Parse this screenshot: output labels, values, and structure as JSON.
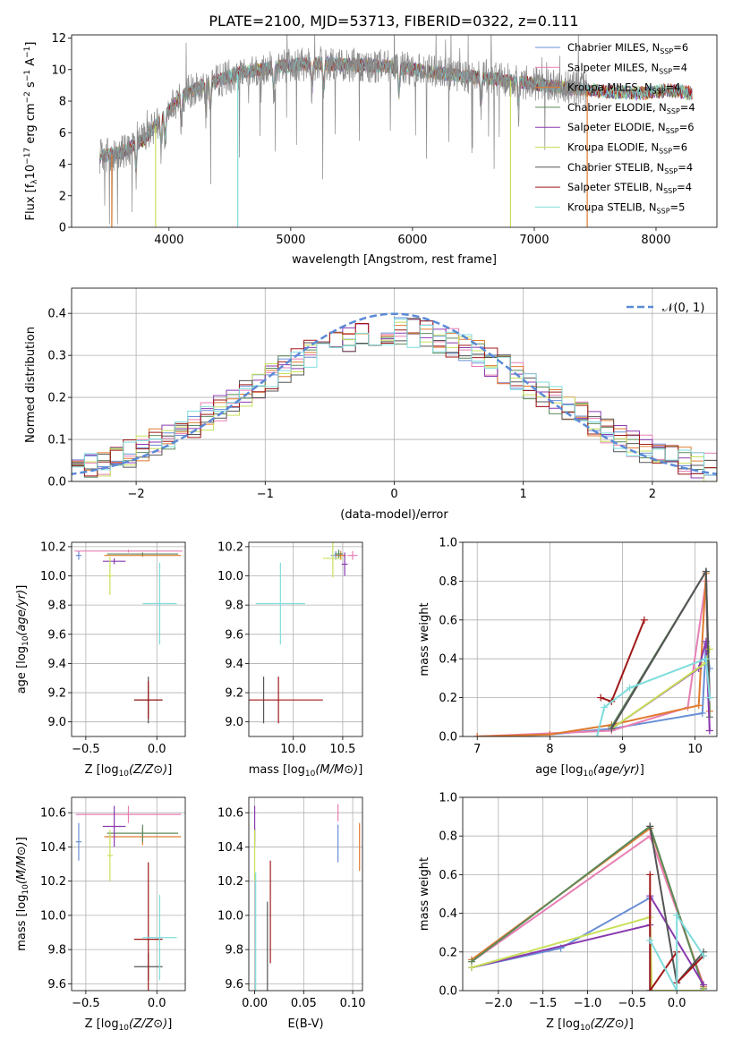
{
  "figure_title": "PLATE=2100, MJD=53713, FIBERID=0322, z=0.111",
  "colors": {
    "chabrier_miles": "#6a8fd6",
    "salpeter_miles": "#e87fb4",
    "kroupa_miles": "#e07a2e",
    "chabrier_elodie": "#5b8a5b",
    "salpeter_elodie": "#8a3ab0",
    "kroupa_elodie": "#c8e05a",
    "chabrier_stelib": "#555555",
    "salpeter_stelib": "#a01818",
    "kroupa_stelib": "#7fdcdc",
    "gaussian": "#5b8ad6"
  },
  "chart_data": [
    {
      "id": "spectrum",
      "type": "line",
      "title": "PLATE=2100, MJD=53713, FIBERID=0322, z=0.111",
      "xlabel": "wavelength [Angstrom, rest frame]",
      "ylabel": "Flux [f_λ 10^-17 erg cm^-2 s^-1 A^-1]",
      "xlim": [
        3200,
        8500
      ],
      "ylim": [
        0,
        12.2
      ],
      "xticks": [
        4000,
        5000,
        6000,
        7000,
        8000
      ],
      "yticks": [
        0,
        2,
        4,
        6,
        8,
        10,
        12
      ],
      "grid": false,
      "legend_position": "right",
      "legend": [
        {
          "label": "Chabrier MILES, N",
          "sub": "SSP",
          "suffix": "=6",
          "color_key": "chabrier_miles"
        },
        {
          "label": "Salpeter MILES, N",
          "sub": "SSP",
          "suffix": "=4",
          "color_key": "salpeter_miles"
        },
        {
          "label": "Kroupa MILES, N",
          "sub": "SSP",
          "suffix": "=4",
          "color_key": "kroupa_miles"
        },
        {
          "label": "Chabrier ELODIE, N",
          "sub": "SSP",
          "suffix": "=4",
          "color_key": "chabrier_elodie"
        },
        {
          "label": "Salpeter ELODIE, N",
          "sub": "SSP",
          "suffix": "=6",
          "color_key": "salpeter_elodie"
        },
        {
          "label": "Kroupa ELODIE, N",
          "sub": "SSP",
          "suffix": "=6",
          "color_key": "kroupa_elodie"
        },
        {
          "label": "Chabrier STELIB, N",
          "sub": "SSP",
          "suffix": "=4",
          "color_key": "chabrier_stelib"
        },
        {
          "label": "Salpeter STELIB, N",
          "sub": "SSP",
          "suffix": "=4",
          "color_key": "salpeter_stelib"
        },
        {
          "label": "Kroupa STELIB, N",
          "sub": "SSP",
          "suffix": "=5",
          "color_key": "kroupa_stelib"
        }
      ],
      "continuum_knots": [
        [
          3430,
          4.5
        ],
        [
          3600,
          4.7
        ],
        [
          3800,
          5.6
        ],
        [
          3950,
          7.0
        ],
        [
          4100,
          8.3
        ],
        [
          4300,
          9.1
        ],
        [
          4600,
          9.8
        ],
        [
          4900,
          10.2
        ],
        [
          5200,
          10.4
        ],
        [
          5500,
          10.3
        ],
        [
          5800,
          10.2
        ],
        [
          6100,
          9.9
        ],
        [
          6400,
          9.6
        ],
        [
          6800,
          9.3
        ],
        [
          7200,
          8.9
        ],
        [
          7600,
          8.6
        ],
        [
          7900,
          8.5
        ],
        [
          8100,
          8.7
        ],
        [
          8300,
          8.5
        ]
      ],
      "data_range": [
        3430,
        7440
      ],
      "model_range": [
        3430,
        8300
      ],
      "dropouts": [
        [
          3530,
          "kroupa_miles"
        ],
        [
          3890,
          "kroupa_elodie"
        ],
        [
          4565,
          "kroupa_stelib"
        ],
        [
          6805,
          "kroupa_elodie"
        ],
        [
          7435,
          "kroupa_miles"
        ]
      ]
    },
    {
      "id": "residual_hist",
      "type": "histogram",
      "xlabel": "(data-model)/error",
      "ylabel": "Normed distribution",
      "xlim": [
        -2.5,
        2.5
      ],
      "ylim": [
        0,
        0.46
      ],
      "xticks": [
        -2,
        -1,
        0,
        1,
        2
      ],
      "xticklabels": [
        "−2",
        "−1",
        "0",
        "1",
        "2"
      ],
      "yticks": [
        0,
        0.1,
        0.2,
        0.3,
        0.4
      ],
      "yticklabels": [
        "0.0",
        "0.1",
        "0.2",
        "0.3",
        "0.4"
      ],
      "grid": true,
      "legend_position": "top-right",
      "gaussian_label": "𝒩(0, 1)",
      "bin_width": 0.1
    },
    {
      "id": "age_vs_Z",
      "type": "errorbar",
      "xlabel": "Z [log10(Z/Z⊙)]",
      "ylabel": "age [log10(age/yr)]",
      "xlim": [
        -0.6,
        0.2
      ],
      "ylim": [
        8.9,
        10.23
      ],
      "xticks": [
        -0.5,
        0.0
      ],
      "xticklabels": [
        "−0.5",
        "0.0"
      ],
      "yticks": [
        9.0,
        9.2,
        9.4,
        9.6,
        9.8,
        10.0,
        10.2
      ],
      "yticklabels": [
        "9.0",
        "9.2",
        "9.4",
        "9.6",
        "9.8",
        "10.0",
        "10.2"
      ],
      "grid": true,
      "points": [
        {
          "c": "chabrier_miles",
          "x": -0.55,
          "y": 10.14,
          "xe": 0.02,
          "ye": 0.03
        },
        {
          "c": "salpeter_miles",
          "x": -0.2,
          "y": 10.17,
          "xe": 0.38,
          "ye": 0.01
        },
        {
          "c": "kroupa_miles",
          "x": -0.1,
          "y": 10.14,
          "xe": 0.27,
          "ye": 0.01
        },
        {
          "c": "chabrier_elodie",
          "x": -0.1,
          "y": 10.15,
          "xe": 0.25,
          "ye": 0.01
        },
        {
          "c": "salpeter_elodie",
          "x": -0.3,
          "y": 10.1,
          "xe": 0.08,
          "ye": 0.02
        },
        {
          "c": "kroupa_elodie",
          "x": -0.33,
          "y": 10.0,
          "xe": 0.02,
          "ye": 0.13
        },
        {
          "c": "chabrier_stelib",
          "x": -0.06,
          "y": 9.15,
          "xe": 0.1,
          "ye": 0.16
        },
        {
          "c": "salpeter_stelib",
          "x": -0.06,
          "y": 9.15,
          "xe": 0.1,
          "ye": 0.13
        },
        {
          "c": "kroupa_stelib",
          "x": 0.02,
          "y": 9.81,
          "xe": 0.12,
          "ye": 0.28
        }
      ]
    },
    {
      "id": "age_vs_mass",
      "type": "errorbar",
      "xlabel": "mass [log10(M/M⊙)]",
      "ylabel": "",
      "xlim": [
        9.55,
        10.7
      ],
      "ylim": [
        8.9,
        10.23
      ],
      "xticks": [
        10.0,
        10.5
      ],
      "xticklabels": [
        "10.0",
        "10.5"
      ],
      "yticks": [
        9.0,
        9.2,
        9.4,
        9.6,
        9.8,
        10.0,
        10.2
      ],
      "yticklabels": [
        "9.0",
        "9.2",
        "9.4",
        "9.6",
        "9.8",
        "10.0",
        "10.2"
      ],
      "grid": true,
      "points": [
        {
          "c": "chabrier_miles",
          "x": 10.43,
          "y": 10.14,
          "xe": 0.05,
          "ye": 0.03
        },
        {
          "c": "salpeter_miles",
          "x": 10.6,
          "y": 10.14,
          "xe": 0.05,
          "ye": 0.03
        },
        {
          "c": "kroupa_miles",
          "x": 10.48,
          "y": 10.14,
          "xe": 0.05,
          "ye": 0.03
        },
        {
          "c": "chabrier_elodie",
          "x": 10.46,
          "y": 10.15,
          "xe": 0.04,
          "ye": 0.03
        },
        {
          "c": "salpeter_elodie",
          "x": 10.52,
          "y": 10.08,
          "xe": 0.03,
          "ye": 0.08
        },
        {
          "c": "kroupa_elodie",
          "x": 10.4,
          "y": 10.12,
          "xe": 0.1,
          "ye": 0.13
        },
        {
          "c": "chabrier_stelib",
          "x": 9.7,
          "y": 9.15,
          "xe": 0.0,
          "ye": 0.16
        },
        {
          "c": "salpeter_stelib",
          "x": 9.85,
          "y": 9.15,
          "xe": 0.45,
          "ye": 0.16
        },
        {
          "c": "kroupa_stelib",
          "x": 9.87,
          "y": 9.81,
          "xe": 0.25,
          "ye": 0.28
        }
      ]
    },
    {
      "id": "mass_weight_vs_age",
      "type": "line",
      "xlabel": "age [log10(age/yr)]",
      "ylabel": "mass weight",
      "xlim": [
        6.8,
        10.3
      ],
      "ylim": [
        0,
        1.0
      ],
      "xticks": [
        7,
        8,
        9,
        10
      ],
      "xticklabels": [
        "7",
        "8",
        "9",
        "10"
      ],
      "yticks": [
        0,
        0.2,
        0.4,
        0.6,
        0.8,
        1.0
      ],
      "yticklabels": [
        "0.0",
        "0.2",
        "0.4",
        "0.6",
        "0.8",
        "1.0"
      ],
      "grid": true,
      "series": [
        {
          "c": "chabrier_miles",
          "x": [
            7.0,
            8.0,
            8.85,
            10.1,
            10.15,
            10.2
          ],
          "y": [
            0.0,
            0.01,
            0.04,
            0.12,
            0.48,
            0.35
          ]
        },
        {
          "c": "salpeter_miles",
          "x": [
            7.0,
            8.85,
            9.9,
            10.15,
            10.2
          ],
          "y": [
            0.0,
            0.03,
            0.15,
            0.8,
            0.03
          ]
        },
        {
          "c": "kroupa_miles",
          "x": [
            7.0,
            8.0,
            8.85,
            10.05,
            10.15,
            10.2
          ],
          "y": [
            0.0,
            0.01,
            0.06,
            0.16,
            0.84,
            0.13
          ]
        },
        {
          "c": "chabrier_elodie",
          "x": [
            8.85,
            10.15,
            10.2
          ],
          "y": [
            0.05,
            0.85,
            0.1
          ]
        },
        {
          "c": "salpeter_elodie",
          "x": [
            8.85,
            10.05,
            10.15,
            10.2
          ],
          "y": [
            0.04,
            0.35,
            0.49,
            0.03
          ]
        },
        {
          "c": "kroupa_elodie",
          "x": [
            8.85,
            10.15,
            10.2
          ],
          "y": [
            0.04,
            0.38,
            0.45
          ]
        },
        {
          "c": "chabrier_stelib",
          "x": [
            8.85,
            10.15,
            10.2
          ],
          "y": [
            0.04,
            0.85,
            0.2
          ]
        },
        {
          "c": "salpeter_stelib",
          "x": [
            8.7,
            8.85,
            9.3
          ],
          "y": [
            0.2,
            0.18,
            0.6
          ]
        },
        {
          "c": "kroupa_stelib",
          "x": [
            8.65,
            8.75,
            9.1,
            10.15,
            10.2
          ],
          "y": [
            0.0,
            0.15,
            0.25,
            0.4,
            0.2
          ]
        }
      ]
    },
    {
      "id": "mass_vs_Z",
      "type": "errorbar",
      "xlabel": "Z [log10(Z/Z⊙)]",
      "ylabel": "mass [log10(M/M⊙)]",
      "xlim": [
        -0.6,
        0.2
      ],
      "ylim": [
        9.56,
        10.69
      ],
      "xticks": [
        -0.5,
        0.0
      ],
      "xticklabels": [
        "−0.5",
        "0.0"
      ],
      "yticks": [
        9.6,
        9.8,
        10.0,
        10.2,
        10.4,
        10.6
      ],
      "yticklabels": [
        "9.6",
        "9.8",
        "10.0",
        "10.2",
        "10.4",
        "10.6"
      ],
      "grid": true,
      "points": [
        {
          "c": "chabrier_miles",
          "x": -0.55,
          "y": 10.43,
          "xe": 0.02,
          "ye": 0.11
        },
        {
          "c": "salpeter_miles",
          "x": -0.2,
          "y": 10.59,
          "xe": 0.37,
          "ye": 0.05
        },
        {
          "c": "kroupa_miles",
          "x": -0.1,
          "y": 10.46,
          "xe": 0.27,
          "ye": 0.05
        },
        {
          "c": "chabrier_elodie",
          "x": -0.1,
          "y": 10.48,
          "xe": 0.25,
          "ye": 0.05
        },
        {
          "c": "salpeter_elodie",
          "x": -0.3,
          "y": 10.52,
          "xe": 0.08,
          "ye": 0.12
        },
        {
          "c": "kroupa_elodie",
          "x": -0.33,
          "y": 10.35,
          "xe": 0.02,
          "ye": 0.15
        },
        {
          "c": "chabrier_stelib",
          "x": -0.06,
          "y": 9.7,
          "xe": 0.1,
          "ye": 0.08
        },
        {
          "c": "salpeter_stelib",
          "x": -0.06,
          "y": 9.86,
          "xe": 0.1,
          "ye": 0.45
        },
        {
          "c": "kroupa_stelib",
          "x": 0.02,
          "y": 9.87,
          "xe": 0.12,
          "ye": 0.25
        }
      ]
    },
    {
      "id": "mass_vs_ebv",
      "type": "errorbar",
      "xlabel": "E(B-V)",
      "ylabel": "",
      "xlim": [
        -0.006,
        0.11
      ],
      "ylim": [
        9.56,
        10.69
      ],
      "xticks": [
        0.0,
        0.05,
        0.1
      ],
      "xticklabels": [
        "0.00",
        "0.05",
        "0.10"
      ],
      "yticks": [
        9.6,
        9.8,
        10.0,
        10.2,
        10.4,
        10.6
      ],
      "yticklabels": [
        "9.6",
        "9.8",
        "10.0",
        "10.2",
        "10.4",
        "10.6"
      ],
      "grid": true,
      "points": [
        {
          "c": "chabrier_miles",
          "x": 0.085,
          "y": 10.42,
          "xe": 0.0,
          "ye": 0.11
        },
        {
          "c": "salpeter_miles",
          "x": 0.085,
          "y": 10.6,
          "xe": 0.0,
          "ye": 0.05
        },
        {
          "c": "kroupa_miles",
          "x": 0.107,
          "y": 10.4,
          "xe": 0.0,
          "ye": 0.14
        },
        {
          "c": "chabrier_elodie",
          "x": 0.0,
          "y": 10.47,
          "xe": 0.0,
          "ye": 0.04
        },
        {
          "c": "salpeter_elodie",
          "x": 0.0,
          "y": 10.52,
          "xe": 0.0,
          "ye": 0.12
        },
        {
          "c": "kroupa_elodie",
          "x": 0.0,
          "y": 10.35,
          "xe": 0.0,
          "ye": 0.15
        },
        {
          "c": "chabrier_stelib",
          "x": 0.013,
          "y": 9.82,
          "xe": 0.0,
          "ye": 0.26
        },
        {
          "c": "salpeter_stelib",
          "x": 0.016,
          "y": 10.02,
          "xe": 0.0,
          "ye": 0.3
        },
        {
          "c": "kroupa_stelib",
          "x": 0.001,
          "y": 9.9,
          "xe": 0.0,
          "ye": 0.35
        }
      ]
    },
    {
      "id": "mass_weight_vs_Z",
      "type": "line",
      "xlabel": "Z [log10(Z/Z⊙)]",
      "ylabel": "mass weight",
      "xlim": [
        -2.4,
        0.45
      ],
      "ylim": [
        0,
        1.0
      ],
      "xticks": [
        -2.0,
        -1.5,
        -1.0,
        -0.5,
        0.0
      ],
      "xticklabels": [
        "−2.0",
        "−1.5",
        "−1.0",
        "−0.5",
        "0.0"
      ],
      "yticks": [
        0,
        0.2,
        0.4,
        0.6,
        0.8,
        1.0
      ],
      "yticklabels": [
        "0.0",
        "0.2",
        "0.4",
        "0.6",
        "0.8",
        "1.0"
      ],
      "grid": true,
      "series": [
        {
          "c": "chabrier_miles",
          "x": [
            -2.3,
            -1.3,
            -0.3,
            -0.3,
            0.3
          ],
          "y": [
            0.12,
            0.22,
            0.48,
            0.0,
            0.0
          ]
        },
        {
          "c": "salpeter_miles",
          "x": [
            -2.3,
            -0.3,
            0.3
          ],
          "y": [
            0.15,
            0.8,
            0.03
          ]
        },
        {
          "c": "kroupa_miles",
          "x": [
            -2.3,
            -0.3,
            0.3
          ],
          "y": [
            0.16,
            0.84,
            0.02
          ]
        },
        {
          "c": "chabrier_elodie",
          "x": [
            -2.3,
            -0.3,
            0.3
          ],
          "y": [
            0.15,
            0.85,
            0.01
          ]
        },
        {
          "c": "salpeter_elodie",
          "x": [
            -2.3,
            -0.3,
            -0.3,
            0.3
          ],
          "y": [
            0.12,
            0.34,
            0.49,
            0.03
          ]
        },
        {
          "c": "kroupa_elodie",
          "x": [
            -2.3,
            -0.3,
            -0.28,
            0.3
          ],
          "y": [
            0.12,
            0.38,
            0.0,
            0.0
          ]
        },
        {
          "c": "chabrier_stelib",
          "x": [
            -0.3,
            0.0,
            0.3
          ],
          "y": [
            0.85,
            0.04,
            0.2
          ]
        },
        {
          "c": "salpeter_stelib",
          "x": [
            -0.3,
            -0.3,
            0.0,
            0.0,
            0.3
          ],
          "y": [
            0.6,
            0.0,
            0.2,
            0.04,
            0.18
          ]
        },
        {
          "c": "kroupa_stelib",
          "x": [
            -0.3,
            0.0,
            0.0,
            0.3
          ],
          "y": [
            0.26,
            0.0,
            0.39,
            0.18
          ]
        }
      ]
    }
  ]
}
